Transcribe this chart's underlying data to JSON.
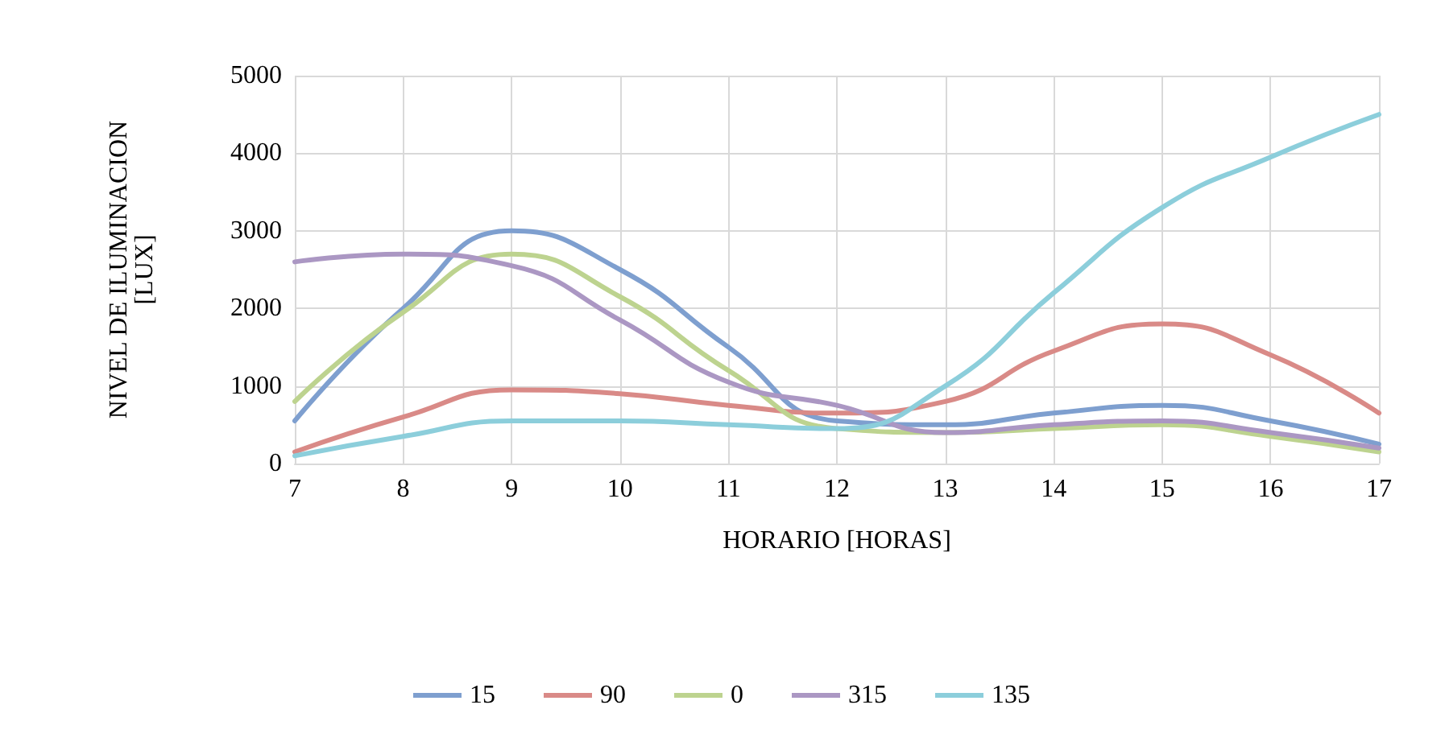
{
  "chart_data": {
    "type": "line",
    "xlabel": "HORARIO [HORAS]",
    "ylabel": "NIVEL DE ILUMINACION\n[LUX]",
    "x": [
      7,
      8,
      9,
      10,
      11,
      12,
      13,
      14,
      15,
      16,
      17
    ],
    "series": [
      {
        "name": "15",
        "color": "#7e9fcf",
        "values": [
          550,
          2000,
          3000,
          2500,
          1500,
          550,
          500,
          650,
          750,
          550,
          250
        ]
      },
      {
        "name": "90",
        "color": "#d98a87",
        "values": [
          150,
          600,
          950,
          900,
          750,
          650,
          800,
          1450,
          1800,
          1400,
          650
        ]
      },
      {
        "name": "0",
        "color": "#bdd38f",
        "values": [
          800,
          1950,
          2700,
          2150,
          1200,
          450,
          400,
          450,
          500,
          350,
          150
        ]
      },
      {
        "name": "315",
        "color": "#ab97c3",
        "values": [
          2600,
          2700,
          2550,
          1850,
          1050,
          750,
          400,
          500,
          550,
          400,
          200
        ]
      },
      {
        "name": "135",
        "color": "#8ccedb",
        "values": [
          100,
          350,
          550,
          550,
          500,
          450,
          1000,
          2200,
          3300,
          3950,
          4500
        ]
      }
    ],
    "xlim": [
      7,
      17
    ],
    "xticks": [
      7,
      8,
      9,
      10,
      11,
      12,
      13,
      14,
      15,
      16,
      17
    ],
    "ylim": [
      0,
      5000
    ],
    "yticks": [
      0,
      1000,
      2000,
      3000,
      4000,
      5000
    ],
    "grid": true,
    "legend": "bottom",
    "marker": "none",
    "line_style": "solid"
  }
}
